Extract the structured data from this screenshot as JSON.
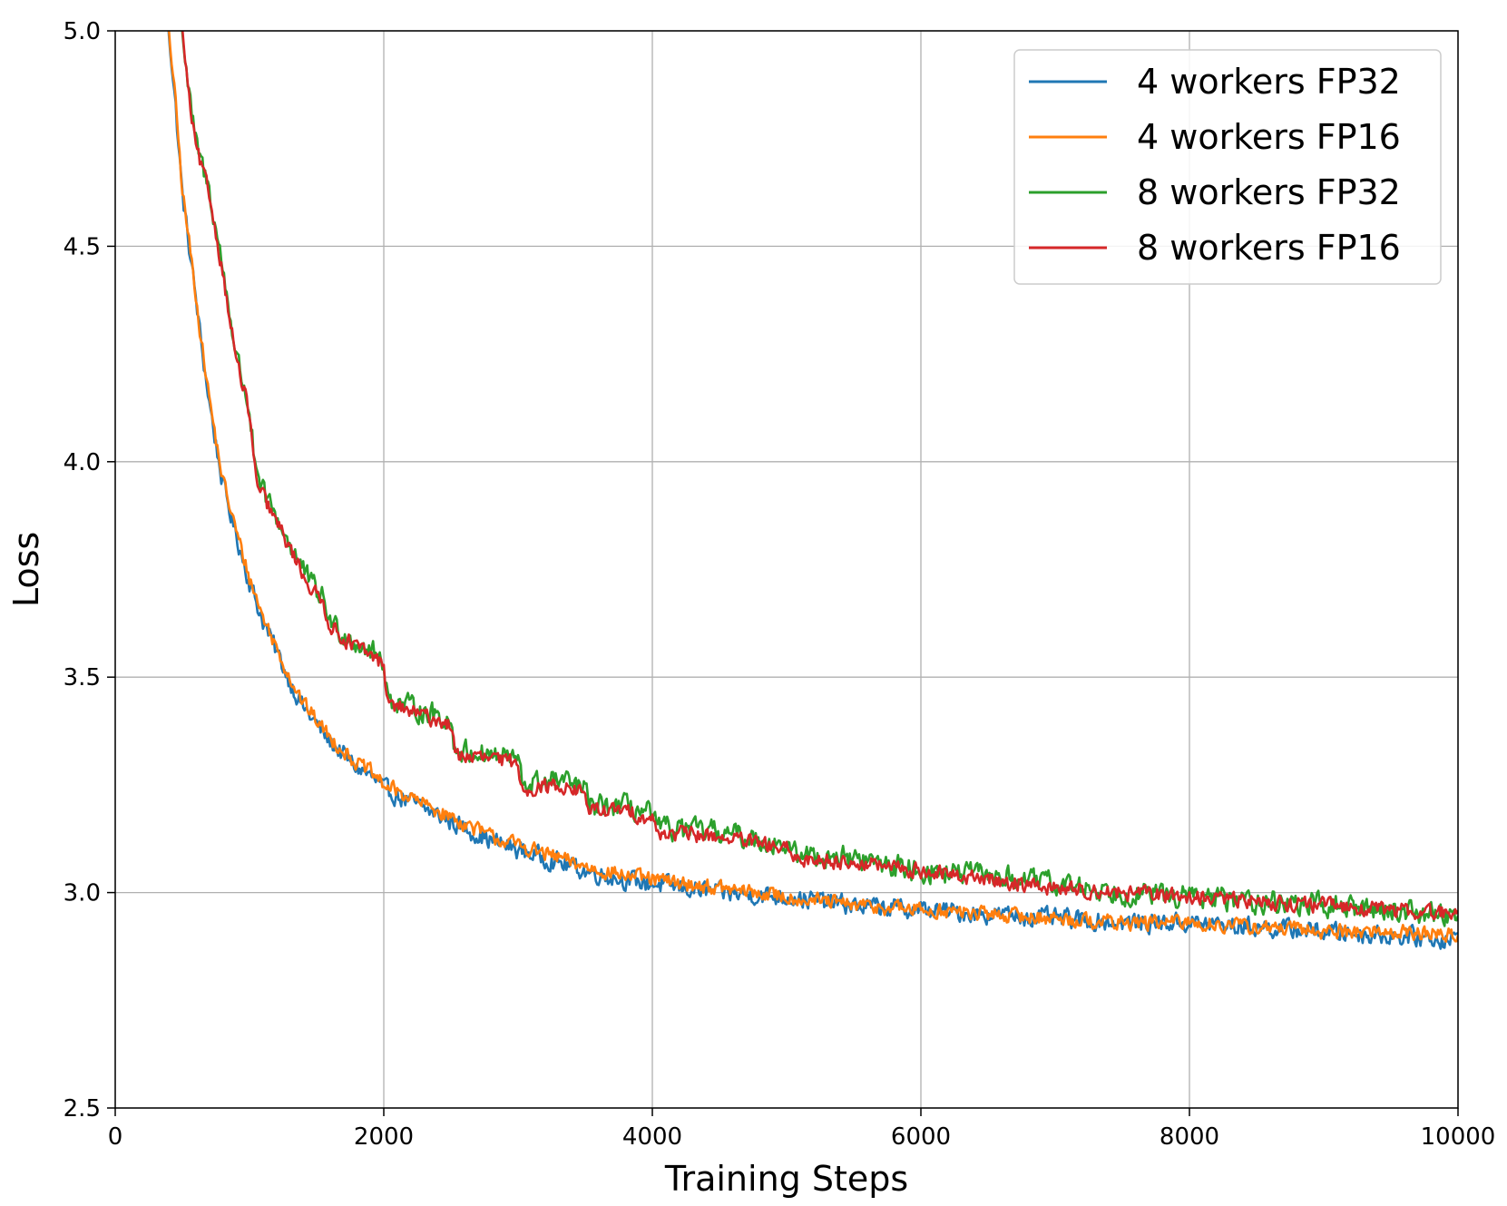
{
  "chart_data": {
    "type": "line",
    "xlabel": "Training Steps",
    "ylabel": "Loss",
    "xlim": [
      0,
      10000
    ],
    "ylim": [
      2.5,
      5.0
    ],
    "xticks": [
      0,
      2000,
      4000,
      6000,
      8000,
      10000
    ],
    "yticks": [
      2.5,
      3.0,
      3.5,
      4.0,
      4.5,
      5.0
    ],
    "xtick_labels": [
      "0",
      "2000",
      "4000",
      "6000",
      "8000",
      "10000"
    ],
    "ytick_labels": [
      "2.5",
      "3.0",
      "3.5",
      "4.0",
      "4.5",
      "5.0"
    ],
    "grid": true,
    "legend_position": "top-right",
    "series": [
      {
        "name": "4 workers FP32",
        "color": "#1f77b4",
        "points": [
          [
            400,
            5.0
          ],
          [
            450,
            4.82
          ],
          [
            500,
            4.62
          ],
          [
            550,
            4.5
          ],
          [
            600,
            4.38
          ],
          [
            650,
            4.25
          ],
          [
            700,
            4.14
          ],
          [
            750,
            4.04
          ],
          [
            800,
            3.95
          ],
          [
            900,
            3.83
          ],
          [
            1000,
            3.72
          ],
          [
            1100,
            3.63
          ],
          [
            1200,
            3.56
          ],
          [
            1300,
            3.49
          ],
          [
            1400,
            3.43
          ],
          [
            1500,
            3.39
          ],
          [
            1600,
            3.35
          ],
          [
            1700,
            3.32
          ],
          [
            1800,
            3.29
          ],
          [
            1900,
            3.27
          ],
          [
            2000,
            3.24
          ],
          [
            2200,
            3.21
          ],
          [
            2400,
            3.18
          ],
          [
            2600,
            3.15
          ],
          [
            2800,
            3.12
          ],
          [
            3000,
            3.1
          ],
          [
            3200,
            3.08
          ],
          [
            3500,
            3.05
          ],
          [
            3800,
            3.03
          ],
          [
            4000,
            3.02
          ],
          [
            4500,
            3.0
          ],
          [
            5000,
            2.99
          ],
          [
            5500,
            2.97
          ],
          [
            6000,
            2.96
          ],
          [
            6500,
            2.95
          ],
          [
            7000,
            2.94
          ],
          [
            7500,
            2.93
          ],
          [
            8000,
            2.93
          ],
          [
            8500,
            2.92
          ],
          [
            9000,
            2.91
          ],
          [
            9500,
            2.9
          ],
          [
            10000,
            2.89
          ]
        ],
        "noise": 0.02
      },
      {
        "name": "4 workers FP16",
        "color": "#ff7f0e",
        "points": [
          [
            400,
            5.0
          ],
          [
            450,
            4.83
          ],
          [
            500,
            4.63
          ],
          [
            550,
            4.51
          ],
          [
            600,
            4.39
          ],
          [
            650,
            4.26
          ],
          [
            700,
            4.15
          ],
          [
            750,
            4.05
          ],
          [
            800,
            3.96
          ],
          [
            900,
            3.84
          ],
          [
            1000,
            3.73
          ],
          [
            1100,
            3.64
          ],
          [
            1200,
            3.57
          ],
          [
            1300,
            3.5
          ],
          [
            1400,
            3.44
          ],
          [
            1500,
            3.4
          ],
          [
            1600,
            3.36
          ],
          [
            1700,
            3.33
          ],
          [
            1800,
            3.3
          ],
          [
            1900,
            3.28
          ],
          [
            2000,
            3.25
          ],
          [
            2200,
            3.22
          ],
          [
            2400,
            3.19
          ],
          [
            2600,
            3.16
          ],
          [
            2800,
            3.13
          ],
          [
            3000,
            3.11
          ],
          [
            3200,
            3.09
          ],
          [
            3500,
            3.06
          ],
          [
            3800,
            3.04
          ],
          [
            4000,
            3.03
          ],
          [
            4500,
            3.01
          ],
          [
            5000,
            2.99
          ],
          [
            5500,
            2.97
          ],
          [
            6000,
            2.96
          ],
          [
            6500,
            2.95
          ],
          [
            7000,
            2.94
          ],
          [
            7500,
            2.93
          ],
          [
            8000,
            2.93
          ],
          [
            8500,
            2.92
          ],
          [
            9000,
            2.91
          ],
          [
            9500,
            2.91
          ],
          [
            10000,
            2.9
          ]
        ],
        "noise": 0.016
      },
      {
        "name": "8 workers FP32",
        "color": "#2ca02c",
        "points": [
          [
            500,
            5.0
          ],
          [
            550,
            4.85
          ],
          [
            600,
            4.74
          ],
          [
            700,
            4.63
          ],
          [
            800,
            4.45
          ],
          [
            900,
            4.25
          ],
          [
            1000,
            4.12
          ],
          [
            1050,
            3.96
          ],
          [
            1150,
            3.9
          ],
          [
            1250,
            3.84
          ],
          [
            1350,
            3.78
          ],
          [
            1450,
            3.72
          ],
          [
            1550,
            3.68
          ],
          [
            1600,
            3.63
          ],
          [
            1700,
            3.6
          ],
          [
            1800,
            3.58
          ],
          [
            1900,
            3.56
          ],
          [
            2000,
            3.54
          ],
          [
            2030,
            3.45
          ],
          [
            2200,
            3.43
          ],
          [
            2400,
            3.41
          ],
          [
            2500,
            3.4
          ],
          [
            2530,
            3.33
          ],
          [
            2800,
            3.32
          ],
          [
            3000,
            3.31
          ],
          [
            3030,
            3.25
          ],
          [
            3300,
            3.26
          ],
          [
            3500,
            3.24
          ],
          [
            3530,
            3.2
          ],
          [
            3800,
            3.2
          ],
          [
            4000,
            3.18
          ],
          [
            4030,
            3.15
          ],
          [
            4500,
            3.14
          ],
          [
            5000,
            3.11
          ],
          [
            5030,
            3.09
          ],
          [
            5500,
            3.08
          ],
          [
            6000,
            3.05
          ],
          [
            6500,
            3.04
          ],
          [
            7000,
            3.02
          ],
          [
            7500,
            3.0
          ],
          [
            8000,
            2.99
          ],
          [
            8500,
            2.98
          ],
          [
            9000,
            2.97
          ],
          [
            9500,
            2.96
          ],
          [
            10000,
            2.95
          ]
        ],
        "noise": 0.024
      },
      {
        "name": "8 workers FP16",
        "color": "#d62728",
        "points": [
          [
            500,
            5.0
          ],
          [
            550,
            4.84
          ],
          [
            600,
            4.73
          ],
          [
            700,
            4.62
          ],
          [
            800,
            4.44
          ],
          [
            900,
            4.24
          ],
          [
            1000,
            4.11
          ],
          [
            1050,
            3.95
          ],
          [
            1150,
            3.89
          ],
          [
            1250,
            3.83
          ],
          [
            1350,
            3.77
          ],
          [
            1450,
            3.71
          ],
          [
            1550,
            3.67
          ],
          [
            1600,
            3.62
          ],
          [
            1700,
            3.59
          ],
          [
            1800,
            3.57
          ],
          [
            1900,
            3.55
          ],
          [
            2000,
            3.53
          ],
          [
            2030,
            3.44
          ],
          [
            2200,
            3.42
          ],
          [
            2400,
            3.4
          ],
          [
            2500,
            3.39
          ],
          [
            2530,
            3.32
          ],
          [
            2800,
            3.31
          ],
          [
            3000,
            3.3
          ],
          [
            3030,
            3.24
          ],
          [
            3300,
            3.25
          ],
          [
            3500,
            3.23
          ],
          [
            3530,
            3.19
          ],
          [
            3800,
            3.19
          ],
          [
            4000,
            3.17
          ],
          [
            4030,
            3.14
          ],
          [
            4500,
            3.13
          ],
          [
            5000,
            3.1
          ],
          [
            5030,
            3.08
          ],
          [
            5500,
            3.07
          ],
          [
            6000,
            3.05
          ],
          [
            6500,
            3.03
          ],
          [
            7000,
            3.01
          ],
          [
            7500,
            3.0
          ],
          [
            8000,
            2.99
          ],
          [
            8500,
            2.98
          ],
          [
            9000,
            2.97
          ],
          [
            9500,
            2.96
          ],
          [
            10000,
            2.95
          ]
        ],
        "noise": 0.016
      }
    ]
  }
}
